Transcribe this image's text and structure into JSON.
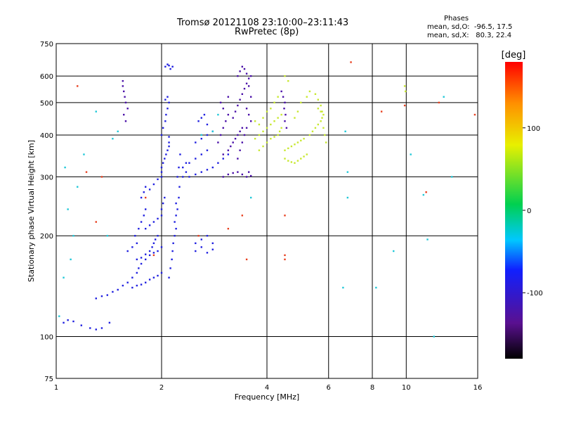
{
  "title": "Tromsø 20121108 23:10:00–23:11:43",
  "subtitle": "RwPretec (8p)",
  "stats": {
    "heading": "Phases",
    "line_o": "mean, sd,O:  -96.5, 17.5",
    "line_x": "mean, sd,X:   80.3, 22.4"
  },
  "chart_data": {
    "type": "scatter",
    "xlabel": "Frequency [MHz]",
    "ylabel": "Stationary phase Virtual Height [km]",
    "xscale": "log",
    "yscale": "log",
    "xlim": [
      1,
      16
    ],
    "ylim": [
      75,
      750
    ],
    "x_ticks": [
      1,
      2,
      4,
      6,
      8,
      10,
      16
    ],
    "y_ticks": [
      75,
      100,
      200,
      300,
      400,
      500,
      600,
      750
    ],
    "x_gridlines": [
      2,
      4,
      6,
      8,
      10
    ],
    "y_gridlines": [
      100,
      200,
      300,
      400,
      500,
      600
    ],
    "grid": true,
    "colorbar": {
      "label": "[deg]",
      "range": [
        -180,
        180
      ],
      "ticks": [
        100,
        0,
        -100
      ]
    },
    "series": [
      {
        "points": [
          [
            1.05,
            110
          ],
          [
            1.08,
            112
          ],
          [
            1.12,
            111
          ],
          [
            1.18,
            108
          ],
          [
            1.25,
            106
          ],
          [
            1.3,
            105
          ],
          [
            1.35,
            106
          ],
          [
            1.42,
            110
          ],
          [
            1.3,
            130
          ],
          [
            1.35,
            132
          ],
          [
            1.4,
            133
          ],
          [
            1.45,
            136
          ],
          [
            1.5,
            138
          ],
          [
            1.55,
            142
          ],
          [
            1.6,
            145
          ],
          [
            1.65,
            150
          ],
          [
            1.7,
            155
          ],
          [
            1.72,
            160
          ],
          [
            1.75,
            165
          ],
          [
            1.8,
            170
          ],
          [
            1.85,
            175
          ],
          [
            1.9,
            178
          ],
          [
            1.95,
            180
          ],
          [
            2.0,
            185
          ],
          [
            1.65,
            140
          ],
          [
            1.7,
            142
          ],
          [
            1.75,
            143
          ],
          [
            1.8,
            145
          ],
          [
            1.85,
            148
          ],
          [
            1.9,
            150
          ],
          [
            1.95,
            152
          ],
          [
            2.0,
            155
          ],
          [
            1.7,
            170
          ],
          [
            1.75,
            172
          ],
          [
            1.8,
            176
          ],
          [
            1.85,
            180
          ],
          [
            1.88,
            185
          ],
          [
            1.9,
            190
          ],
          [
            1.92,
            195
          ],
          [
            1.95,
            200
          ],
          [
            1.8,
            210
          ],
          [
            1.85,
            215
          ],
          [
            1.9,
            220
          ],
          [
            1.95,
            225
          ],
          [
            2.0,
            230
          ],
          [
            2.0,
            240
          ],
          [
            2.02,
            250
          ],
          [
            2.04,
            260
          ],
          [
            1.6,
            180
          ],
          [
            1.65,
            185
          ],
          [
            1.7,
            190
          ],
          [
            1.68,
            200
          ],
          [
            1.72,
            210
          ],
          [
            1.75,
            220
          ],
          [
            1.78,
            230
          ],
          [
            1.8,
            240
          ],
          [
            1.75,
            260
          ],
          [
            1.78,
            270
          ],
          [
            1.8,
            280
          ],
          [
            1.85,
            275
          ],
          [
            1.9,
            285
          ],
          [
            1.95,
            295
          ],
          [
            2.0,
            300
          ],
          [
            2.0,
            310
          ],
          [
            2.0,
            320
          ],
          [
            2.02,
            330
          ],
          [
            2.04,
            340
          ],
          [
            2.06,
            350
          ],
          [
            2.08,
            360
          ],
          [
            2.1,
            370
          ],
          [
            2.1,
            380
          ],
          [
            2.1,
            395
          ],
          [
            2.0,
            400
          ],
          [
            2.02,
            420
          ],
          [
            2.05,
            440
          ],
          [
            2.06,
            460
          ],
          [
            2.08,
            480
          ],
          [
            2.1,
            500
          ],
          [
            2.05,
            510
          ],
          [
            2.08,
            520
          ],
          [
            2.1,
            150
          ],
          [
            2.12,
            160
          ],
          [
            2.14,
            170
          ],
          [
            2.15,
            180
          ],
          [
            2.16,
            190
          ],
          [
            2.18,
            200
          ],
          [
            2.2,
            210
          ],
          [
            2.18,
            220
          ],
          [
            2.2,
            230
          ],
          [
            2.22,
            240
          ],
          [
            2.2,
            250
          ],
          [
            2.24,
            260
          ],
          [
            2.25,
            280
          ],
          [
            2.22,
            300
          ],
          [
            2.24,
            320
          ],
          [
            2.26,
            350
          ],
          [
            2.05,
            640
          ],
          [
            2.1,
            645
          ],
          [
            2.15,
            640
          ],
          [
            2.12,
            630
          ],
          [
            2.08,
            650
          ],
          [
            2.5,
            180
          ],
          [
            2.6,
            185
          ],
          [
            2.7,
            178
          ],
          [
            2.8,
            182
          ],
          [
            2.5,
            190
          ],
          [
            2.6,
            195
          ],
          [
            2.7,
            200
          ],
          [
            2.8,
            190
          ],
          [
            2.4,
            300
          ],
          [
            2.5,
            305
          ],
          [
            2.6,
            310
          ],
          [
            2.7,
            315
          ],
          [
            2.8,
            320
          ],
          [
            2.9,
            330
          ],
          [
            3.0,
            340
          ],
          [
            3.1,
            350
          ],
          [
            2.4,
            330
          ],
          [
            2.5,
            340
          ],
          [
            2.6,
            350
          ],
          [
            2.7,
            360
          ],
          [
            2.5,
            380
          ],
          [
            2.6,
            390
          ],
          [
            2.7,
            400
          ],
          [
            2.8,
            410
          ],
          [
            2.55,
            440
          ],
          [
            2.6,
            450
          ],
          [
            2.65,
            460
          ],
          [
            2.7,
            430
          ],
          [
            2.3,
            300
          ],
          [
            2.35,
            310
          ],
          [
            2.3,
            320
          ],
          [
            2.35,
            330
          ]
        ]
      },
      {
        "points": [
          [
            3.0,
            300
          ],
          [
            3.1,
            305
          ],
          [
            3.2,
            308
          ],
          [
            3.3,
            310
          ],
          [
            3.4,
            305
          ],
          [
            3.5,
            300
          ],
          [
            3.6,
            302
          ],
          [
            3.55,
            310
          ],
          [
            3.0,
            350
          ],
          [
            3.1,
            360
          ],
          [
            3.15,
            370
          ],
          [
            3.2,
            380
          ],
          [
            3.25,
            390
          ],
          [
            3.3,
            400
          ],
          [
            3.35,
            410
          ],
          [
            3.4,
            420
          ],
          [
            3.2,
            450
          ],
          [
            3.25,
            470
          ],
          [
            3.3,
            490
          ],
          [
            3.35,
            510
          ],
          [
            3.4,
            530
          ],
          [
            3.45,
            550
          ],
          [
            3.5,
            570
          ],
          [
            3.55,
            590
          ],
          [
            3.3,
            600
          ],
          [
            3.35,
            620
          ],
          [
            3.4,
            640
          ],
          [
            3.45,
            630
          ],
          [
            3.5,
            610
          ],
          [
            3.6,
            600
          ],
          [
            3.55,
            560
          ],
          [
            3.6,
            520
          ],
          [
            3.5,
            480
          ],
          [
            3.55,
            460
          ],
          [
            3.6,
            440
          ],
          [
            3.5,
            420
          ],
          [
            3.45,
            400
          ],
          [
            3.4,
            380
          ],
          [
            3.35,
            360
          ],
          [
            3.3,
            340
          ],
          [
            2.9,
            380
          ],
          [
            2.95,
            400
          ],
          [
            3.0,
            420
          ],
          [
            3.05,
            440
          ],
          [
            3.1,
            460
          ],
          [
            3.0,
            480
          ],
          [
            2.95,
            500
          ],
          [
            3.1,
            520
          ],
          [
            1.55,
            580
          ],
          [
            1.55,
            560
          ],
          [
            1.56,
            540
          ],
          [
            1.57,
            520
          ],
          [
            1.58,
            500
          ],
          [
            1.6,
            480
          ],
          [
            1.56,
            460
          ],
          [
            1.58,
            440
          ],
          [
            4.4,
            540
          ],
          [
            4.45,
            520
          ],
          [
            4.5,
            500
          ],
          [
            4.48,
            480
          ],
          [
            4.52,
            460
          ],
          [
            4.5,
            440
          ],
          [
            4.55,
            420
          ]
        ]
      },
      {
        "points": [
          [
            3.7,
            390
          ],
          [
            3.8,
            400
          ],
          [
            3.9,
            410
          ],
          [
            4.0,
            420
          ],
          [
            4.1,
            430
          ],
          [
            4.2,
            440
          ],
          [
            4.3,
            450
          ],
          [
            4.4,
            460
          ],
          [
            3.8,
            360
          ],
          [
            3.9,
            370
          ],
          [
            4.0,
            380
          ],
          [
            4.1,
            390
          ],
          [
            4.2,
            395
          ],
          [
            4.3,
            400
          ],
          [
            4.35,
            410
          ],
          [
            4.4,
            420
          ],
          [
            4.5,
            340
          ],
          [
            4.6,
            335
          ],
          [
            4.7,
            332
          ],
          [
            4.8,
            330
          ],
          [
            4.9,
            335
          ],
          [
            5.0,
            340
          ],
          [
            5.1,
            345
          ],
          [
            5.2,
            350
          ],
          [
            4.5,
            360
          ],
          [
            4.6,
            365
          ],
          [
            4.7,
            370
          ],
          [
            4.8,
            375
          ],
          [
            4.9,
            380
          ],
          [
            5.0,
            385
          ],
          [
            5.1,
            390
          ],
          [
            5.3,
            400
          ],
          [
            5.4,
            410
          ],
          [
            5.5,
            420
          ],
          [
            5.6,
            430
          ],
          [
            5.7,
            440
          ],
          [
            5.75,
            450
          ],
          [
            5.8,
            460
          ],
          [
            5.7,
            470
          ],
          [
            5.6,
            480
          ],
          [
            4.2,
            500
          ],
          [
            4.3,
            520
          ],
          [
            4.5,
            600
          ],
          [
            4.6,
            580
          ],
          [
            4.8,
            450
          ],
          [
            4.9,
            470
          ],
          [
            5.0,
            500
          ],
          [
            5.2,
            520
          ],
          [
            5.3,
            540
          ],
          [
            5.5,
            530
          ],
          [
            5.6,
            510
          ],
          [
            5.7,
            490
          ],
          [
            5.75,
            470
          ],
          [
            5.8,
            420
          ],
          [
            5.85,
            400
          ],
          [
            5.9,
            380
          ],
          [
            3.9,
            450
          ],
          [
            4.0,
            470
          ],
          [
            4.1,
            480
          ],
          [
            3.8,
            430
          ],
          [
            3.7,
            440
          ],
          [
            9.9,
            560
          ],
          [
            9.95,
            540
          ]
        ]
      },
      {
        "points": [
          [
            1.02,
            115
          ],
          [
            1.05,
            150
          ],
          [
            1.1,
            170
          ],
          [
            1.12,
            200
          ],
          [
            1.08,
            240
          ],
          [
            1.15,
            280
          ],
          [
            1.06,
            320
          ],
          [
            1.2,
            350
          ],
          [
            1.3,
            470
          ],
          [
            1.5,
            410
          ],
          [
            1.45,
            390
          ],
          [
            1.4,
            200
          ],
          [
            2.6,
            400
          ],
          [
            2.8,
            410
          ],
          [
            2.9,
            460
          ],
          [
            3.6,
            260
          ],
          [
            6.8,
            310
          ],
          [
            6.8,
            260
          ],
          [
            6.7,
            410
          ],
          [
            12.8,
            520
          ],
          [
            13.5,
            300
          ],
          [
            11.5,
            195
          ],
          [
            9.2,
            180
          ],
          [
            8.2,
            140
          ],
          [
            6.6,
            140
          ],
          [
            11.2,
            265
          ],
          [
            12.0,
            100
          ],
          [
            10.3,
            350
          ]
        ]
      },
      {
        "points": [
          [
            1.22,
            310
          ],
          [
            1.3,
            220
          ],
          [
            1.35,
            300
          ],
          [
            1.8,
            260
          ],
          [
            2.55,
            200
          ],
          [
            3.1,
            210
          ],
          [
            3.4,
            230
          ],
          [
            4.5,
            230
          ],
          [
            4.5,
            175
          ],
          [
            4.5,
            170
          ],
          [
            6.95,
            660
          ],
          [
            3.5,
            170
          ],
          [
            1.9,
            175
          ],
          [
            11.4,
            270
          ],
          [
            15.7,
            460
          ],
          [
            1.15,
            560
          ],
          [
            12.4,
            500
          ],
          [
            9.9,
            490
          ],
          [
            8.5,
            470
          ]
        ]
      }
    ],
    "series_colors": [
      "#2020e0",
      "#4a10a8",
      "#c8e830",
      "#20c8d8",
      "#e84020"
    ]
  },
  "colors": {
    "background": "#ffffff",
    "axis": "#000000",
    "grid": "#000000"
  }
}
